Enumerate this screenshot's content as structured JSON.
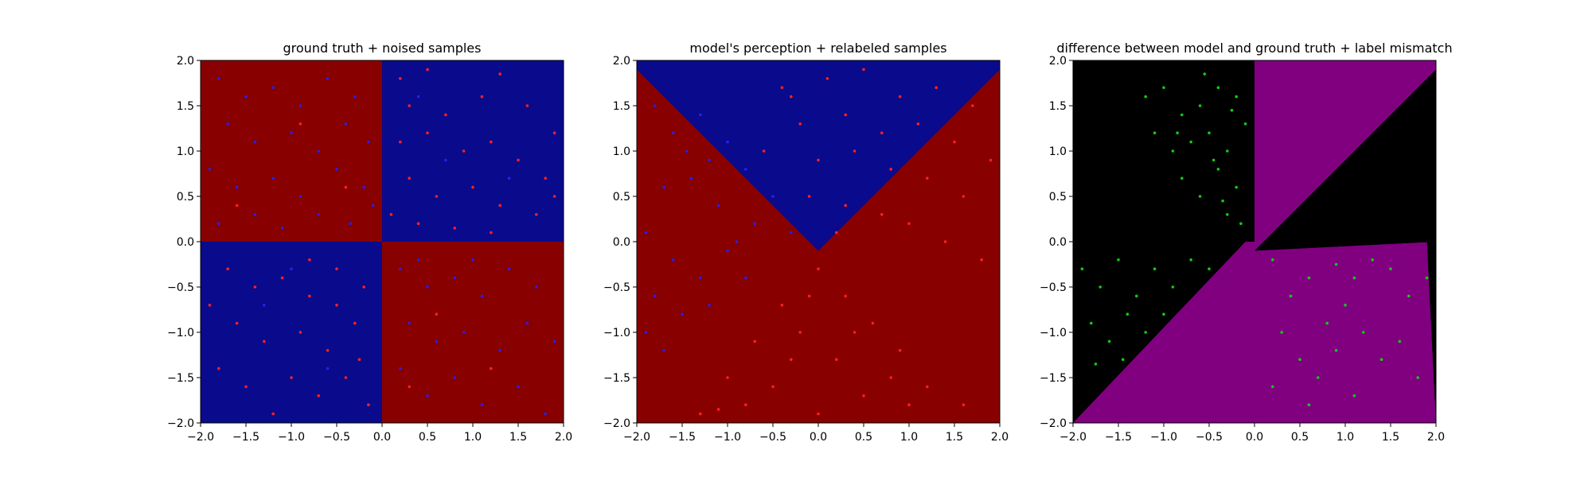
{
  "chart_data": [
    {
      "type": "scatter",
      "title": "ground truth + noised samples",
      "xlabel": "",
      "ylabel": "",
      "xlim": [
        -2.0,
        2.0
      ],
      "ylim": [
        -2.0,
        2.0
      ],
      "xticks": [
        "−2.0",
        "−1.5",
        "−1.0",
        "−0.5",
        "0.0",
        "0.5",
        "1.0",
        "1.5",
        "2.0"
      ],
      "yticks": [
        "−2.0",
        "−1.5",
        "−1.0",
        "−0.5",
        "0.0",
        "0.5",
        "1.0",
        "1.5",
        "2.0"
      ],
      "background": "checkerboard quadrants: top-left and bottom-right class red, top-right and bottom-left class blue",
      "grid": false,
      "colors": {
        "class_a": "#0a0a8c",
        "class_b": "#880000",
        "points_a": "#2222ee",
        "points_b": "#ff2020"
      },
      "series": [
        {
          "color": "#ff2020",
          "points": [
            [
              0.2,
              1.8
            ],
            [
              0.5,
              1.9
            ],
            [
              1.3,
              1.85
            ],
            [
              0.3,
              1.5
            ],
            [
              0.7,
              1.4
            ],
            [
              1.1,
              1.6
            ],
            [
              1.6,
              1.5
            ],
            [
              1.9,
              1.2
            ],
            [
              0.2,
              1.1
            ],
            [
              0.5,
              1.2
            ],
            [
              0.9,
              1.0
            ],
            [
              1.2,
              1.1
            ],
            [
              1.5,
              0.9
            ],
            [
              1.8,
              0.7
            ],
            [
              0.3,
              0.7
            ],
            [
              0.6,
              0.5
            ],
            [
              1.0,
              0.6
            ],
            [
              1.3,
              0.4
            ],
            [
              1.7,
              0.3
            ],
            [
              0.1,
              0.3
            ],
            [
              0.4,
              0.2
            ],
            [
              0.8,
              0.15
            ],
            [
              1.2,
              0.1
            ],
            [
              1.9,
              0.5
            ],
            [
              -1.7,
              -0.3
            ],
            [
              -1.4,
              -0.5
            ],
            [
              -1.1,
              -0.4
            ],
            [
              -0.8,
              -0.6
            ],
            [
              -0.5,
              -0.3
            ],
            [
              -0.2,
              -0.5
            ],
            [
              -1.6,
              -0.9
            ],
            [
              -1.3,
              -1.1
            ],
            [
              -0.9,
              -1.0
            ],
            [
              -0.6,
              -1.2
            ],
            [
              -0.3,
              -0.9
            ],
            [
              -1.8,
              -1.4
            ],
            [
              -1.5,
              -1.6
            ],
            [
              -1.0,
              -1.5
            ],
            [
              -0.7,
              -1.7
            ],
            [
              -0.4,
              -1.5
            ],
            [
              -0.15,
              -1.8
            ],
            [
              -1.2,
              -1.9
            ],
            [
              -0.5,
              -0.7
            ],
            [
              -0.8,
              -0.2
            ],
            [
              -1.9,
              -0.7
            ],
            [
              -0.25,
              -1.3
            ],
            [
              -1.6,
              0.4
            ],
            [
              -0.9,
              1.3
            ],
            [
              -0.4,
              0.6
            ],
            [
              0.6,
              -0.8
            ],
            [
              1.2,
              -1.4
            ],
            [
              0.3,
              -1.6
            ]
          ]
        },
        {
          "color": "#2222ee",
          "points": [
            [
              -1.8,
              1.8
            ],
            [
              -1.5,
              1.6
            ],
            [
              -1.2,
              1.7
            ],
            [
              -0.9,
              1.5
            ],
            [
              -0.6,
              1.8
            ],
            [
              -0.3,
              1.6
            ],
            [
              -1.7,
              1.3
            ],
            [
              -1.4,
              1.1
            ],
            [
              -1.0,
              1.2
            ],
            [
              -0.7,
              1.0
            ],
            [
              -0.4,
              1.3
            ],
            [
              -0.15,
              1.1
            ],
            [
              -1.9,
              0.8
            ],
            [
              -1.6,
              0.6
            ],
            [
              -1.2,
              0.7
            ],
            [
              -0.9,
              0.5
            ],
            [
              -0.5,
              0.8
            ],
            [
              -0.2,
              0.6
            ],
            [
              -1.8,
              0.2
            ],
            [
              -1.4,
              0.3
            ],
            [
              -1.1,
              0.15
            ],
            [
              -0.7,
              0.3
            ],
            [
              -0.35,
              0.2
            ],
            [
              -0.1,
              0.4
            ],
            [
              0.2,
              -0.3
            ],
            [
              0.5,
              -0.5
            ],
            [
              0.8,
              -0.4
            ],
            [
              1.1,
              -0.6
            ],
            [
              1.4,
              -0.3
            ],
            [
              1.7,
              -0.5
            ],
            [
              0.3,
              -0.9
            ],
            [
              0.6,
              -1.1
            ],
            [
              0.9,
              -1.0
            ],
            [
              1.3,
              -1.2
            ],
            [
              1.6,
              -0.9
            ],
            [
              1.9,
              -1.1
            ],
            [
              0.2,
              -1.4
            ],
            [
              0.5,
              -1.7
            ],
            [
              0.8,
              -1.5
            ],
            [
              1.1,
              -1.8
            ],
            [
              1.5,
              -1.6
            ],
            [
              1.8,
              -1.9
            ],
            [
              0.4,
              -0.2
            ],
            [
              1.0,
              -0.2
            ],
            [
              0.4,
              1.6
            ],
            [
              1.4,
              0.7
            ],
            [
              0.7,
              0.9
            ],
            [
              -1.3,
              -0.7
            ],
            [
              -0.6,
              -1.4
            ],
            [
              -1.0,
              -0.3
            ]
          ]
        }
      ]
    },
    {
      "type": "scatter",
      "title": "model's perception + relabeled samples",
      "xlabel": "",
      "ylabel": "",
      "xlim": [
        -2.0,
        2.0
      ],
      "ylim": [
        -2.0,
        2.0
      ],
      "xticks": [
        "−2.0",
        "−1.5",
        "−1.0",
        "−0.5",
        "0.0",
        "0.5",
        "1.0",
        "1.5",
        "2.0"
      ],
      "yticks": [
        "−2.0",
        "−1.5",
        "−1.0",
        "−0.5",
        "0.0",
        "0.5",
        "1.0",
        "1.5",
        "2.0"
      ],
      "background": "blue everywhere except a red wedge below y = |x| - 0.1 (apex near (0, -0.1), opening downward)",
      "grid": false,
      "colors": {
        "class_a": "#0a0a8c",
        "class_b": "#880000",
        "points_a": "#2222ee",
        "points_b": "#ff2020"
      },
      "series": [
        {
          "color": "#2222ee",
          "points": [
            [
              -1.8,
              1.5
            ],
            [
              -1.6,
              1.2
            ],
            [
              -1.3,
              1.4
            ],
            [
              -1.0,
              1.1
            ],
            [
              -0.8,
              0.8
            ],
            [
              -1.7,
              0.6
            ],
            [
              -1.4,
              0.7
            ],
            [
              -1.1,
              0.4
            ],
            [
              -0.7,
              0.2
            ],
            [
              -0.5,
              0.5
            ],
            [
              -1.9,
              0.1
            ],
            [
              -1.6,
              -0.2
            ],
            [
              -1.3,
              -0.4
            ],
            [
              -1.0,
              -0.1
            ],
            [
              -0.8,
              -0.4
            ],
            [
              -1.8,
              -0.6
            ],
            [
              -1.5,
              -0.8
            ],
            [
              -1.2,
              -0.7
            ],
            [
              -1.9,
              -1.0
            ],
            [
              -1.7,
              -1.2
            ],
            [
              -0.3,
              0.1
            ],
            [
              -1.45,
              1.0
            ],
            [
              -0.9,
              0.0
            ],
            [
              -1.2,
              0.9
            ]
          ]
        },
        {
          "color": "#ff2020",
          "points": [
            [
              -0.3,
              1.6
            ],
            [
              0.1,
              1.8
            ],
            [
              0.5,
              1.9
            ],
            [
              0.9,
              1.6
            ],
            [
              1.3,
              1.7
            ],
            [
              1.7,
              1.5
            ],
            [
              -0.2,
              1.3
            ],
            [
              0.3,
              1.4
            ],
            [
              0.7,
              1.2
            ],
            [
              1.1,
              1.3
            ],
            [
              1.5,
              1.1
            ],
            [
              1.9,
              0.9
            ],
            [
              0.0,
              0.9
            ],
            [
              0.4,
              1.0
            ],
            [
              0.8,
              0.8
            ],
            [
              1.2,
              0.7
            ],
            [
              1.6,
              0.5
            ],
            [
              -0.1,
              0.5
            ],
            [
              0.3,
              0.4
            ],
            [
              0.7,
              0.3
            ],
            [
              1.0,
              0.2
            ],
            [
              1.4,
              0.0
            ],
            [
              1.8,
              -0.2
            ],
            [
              0.2,
              0.1
            ],
            [
              -0.6,
              1.0
            ],
            [
              -0.4,
              1.7
            ],
            [
              0.0,
              -0.3
            ],
            [
              0.3,
              -0.6
            ],
            [
              -0.4,
              -0.7
            ],
            [
              0.6,
              -0.9
            ],
            [
              -0.7,
              -1.1
            ],
            [
              0.9,
              -1.2
            ],
            [
              -0.2,
              -1.0
            ],
            [
              0.2,
              -1.3
            ],
            [
              -1.0,
              -1.5
            ],
            [
              1.2,
              -1.6
            ],
            [
              -0.5,
              -1.6
            ],
            [
              0.5,
              -1.7
            ],
            [
              -1.3,
              -1.9
            ],
            [
              1.6,
              -1.8
            ],
            [
              0.0,
              -1.9
            ],
            [
              -0.1,
              -0.6
            ],
            [
              0.8,
              -1.5
            ],
            [
              -0.8,
              -1.8
            ],
            [
              0.4,
              -1.0
            ],
            [
              1.0,
              -1.8
            ],
            [
              -0.3,
              -1.3
            ],
            [
              -1.1,
              -1.85
            ]
          ]
        }
      ]
    },
    {
      "type": "scatter",
      "title": "difference between model and ground truth + label mismatch",
      "xlabel": "",
      "ylabel": "",
      "xlim": [
        -2.0,
        2.0
      ],
      "ylim": [
        -2.0,
        2.0
      ],
      "xticks": [
        "−2.0",
        "−1.5",
        "−1.0",
        "−0.5",
        "0.0",
        "0.5",
        "1.0",
        "1.5",
        "2.0"
      ],
      "yticks": [
        "−2.0",
        "−1.5",
        "−1.0",
        "−0.5",
        "0.0",
        "0.5",
        "1.0",
        "1.5",
        "2.0"
      ],
      "background": "purple where model and ground truth disagree (top-right quadrant; bottom-left above y = -x - 0.1; bottom-right below y = x - 0.1), black elsewhere",
      "grid": false,
      "colors": {
        "agree": "#000000",
        "disagree": "#800080",
        "points": "#11cc11"
      },
      "series": [
        {
          "color": "#11cc11",
          "points": [
            [
              -1.2,
              1.6
            ],
            [
              -1.0,
              1.7
            ],
            [
              -0.8,
              1.4
            ],
            [
              -0.6,
              1.5
            ],
            [
              -0.4,
              1.7
            ],
            [
              -0.2,
              1.6
            ],
            [
              -1.1,
              1.2
            ],
            [
              -0.9,
              1.0
            ],
            [
              -0.7,
              1.1
            ],
            [
              -0.5,
              1.2
            ],
            [
              -0.3,
              1.0
            ],
            [
              -0.1,
              1.3
            ],
            [
              -0.8,
              0.7
            ],
            [
              -0.6,
              0.5
            ],
            [
              -0.4,
              0.8
            ],
            [
              -0.2,
              0.6
            ],
            [
              -0.3,
              0.3
            ],
            [
              -0.15,
              0.2
            ],
            [
              -0.45,
              0.9
            ],
            [
              -0.55,
              1.85
            ],
            [
              -0.25,
              1.45
            ],
            [
              -0.85,
              1.2
            ],
            [
              -0.35,
              0.45
            ],
            [
              -1.9,
              -0.3
            ],
            [
              -1.7,
              -0.5
            ],
            [
              -1.5,
              -0.2
            ],
            [
              -1.3,
              -0.6
            ],
            [
              -1.1,
              -0.3
            ],
            [
              -0.9,
              -0.5
            ],
            [
              -0.7,
              -0.2
            ],
            [
              -1.8,
              -0.9
            ],
            [
              -1.6,
              -1.1
            ],
            [
              -1.4,
              -0.8
            ],
            [
              -1.2,
              -1.0
            ],
            [
              -1.0,
              -0.8
            ],
            [
              -1.75,
              -1.35
            ],
            [
              -1.45,
              -1.3
            ],
            [
              -0.5,
              -0.3
            ],
            [
              0.2,
              -0.2
            ],
            [
              0.4,
              -0.6
            ],
            [
              0.6,
              -0.4
            ],
            [
              0.8,
              -0.9
            ],
            [
              1.0,
              -0.7
            ],
            [
              1.2,
              -1.0
            ],
            [
              1.4,
              -1.3
            ],
            [
              1.6,
              -1.1
            ],
            [
              1.8,
              -1.5
            ],
            [
              0.3,
              -1.0
            ],
            [
              0.5,
              -1.3
            ],
            [
              0.7,
              -1.5
            ],
            [
              0.9,
              -1.2
            ],
            [
              1.1,
              -1.7
            ],
            [
              0.2,
              -1.6
            ],
            [
              0.6,
              -1.8
            ],
            [
              1.5,
              -0.3
            ],
            [
              1.3,
              -0.2
            ],
            [
              1.7,
              -0.6
            ],
            [
              1.9,
              -0.4
            ],
            [
              1.1,
              -0.4
            ],
            [
              0.9,
              -0.25
            ]
          ]
        }
      ]
    }
  ]
}
